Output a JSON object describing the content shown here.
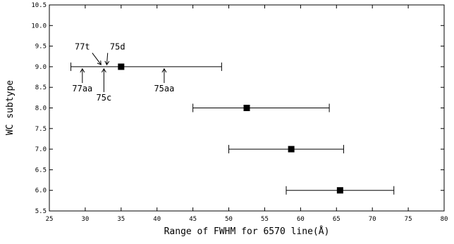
{
  "chart_data": {
    "type": "scatter",
    "title": "",
    "xlabel": "Range of FWHM for 6570 line(Å)",
    "ylabel": "WC subtype",
    "xlim": [
      25,
      80
    ],
    "ylim": [
      5.5,
      10.5
    ],
    "xticks": [
      25,
      30,
      35,
      40,
      45,
      50,
      55,
      60,
      65,
      70,
      75,
      80
    ],
    "xtick_labels": [
      "25",
      "30",
      "35",
      "40",
      "45",
      "50",
      "55",
      "60",
      "65",
      "70",
      "75",
      "80"
    ],
    "yticks": [
      5.5,
      6.0,
      6.5,
      7.0,
      7.5,
      8.0,
      8.5,
      9.0,
      9.5,
      10.0,
      10.5
    ],
    "ytick_labels": [
      "5.5",
      "6.0",
      "6.5",
      "7.0",
      "7.5",
      "8.0",
      "8.5",
      "9.0",
      "9.5",
      "10.0",
      "10.5"
    ],
    "grid": false,
    "points": [
      {
        "y": 9.0,
        "x": 35.0,
        "xmin": 28.0,
        "xmax": 49.0
      },
      {
        "y": 8.0,
        "x": 52.5,
        "xmin": 45.0,
        "xmax": 64.0
      },
      {
        "y": 7.0,
        "x": 58.7,
        "xmin": 50.0,
        "xmax": 66.0
      },
      {
        "y": 6.0,
        "x": 65.5,
        "xmin": 58.0,
        "xmax": 73.0
      }
    ],
    "annotations": [
      {
        "text": "77t",
        "x": 29.6,
        "y": 9.42,
        "arrow_to": [
          32.2,
          9.05
        ]
      },
      {
        "text": "75d",
        "x": 34.5,
        "y": 9.42,
        "arrow_to": [
          33.0,
          9.05
        ]
      },
      {
        "text": "77aa",
        "x": 29.6,
        "y": 8.4,
        "arrow_to": [
          29.6,
          8.95
        ]
      },
      {
        "text": "75c",
        "x": 32.6,
        "y": 8.18,
        "arrow_to": [
          32.6,
          8.95
        ]
      },
      {
        "text": "75aa",
        "x": 41.0,
        "y": 8.4,
        "arrow_to": [
          41.0,
          8.95
        ]
      }
    ]
  }
}
